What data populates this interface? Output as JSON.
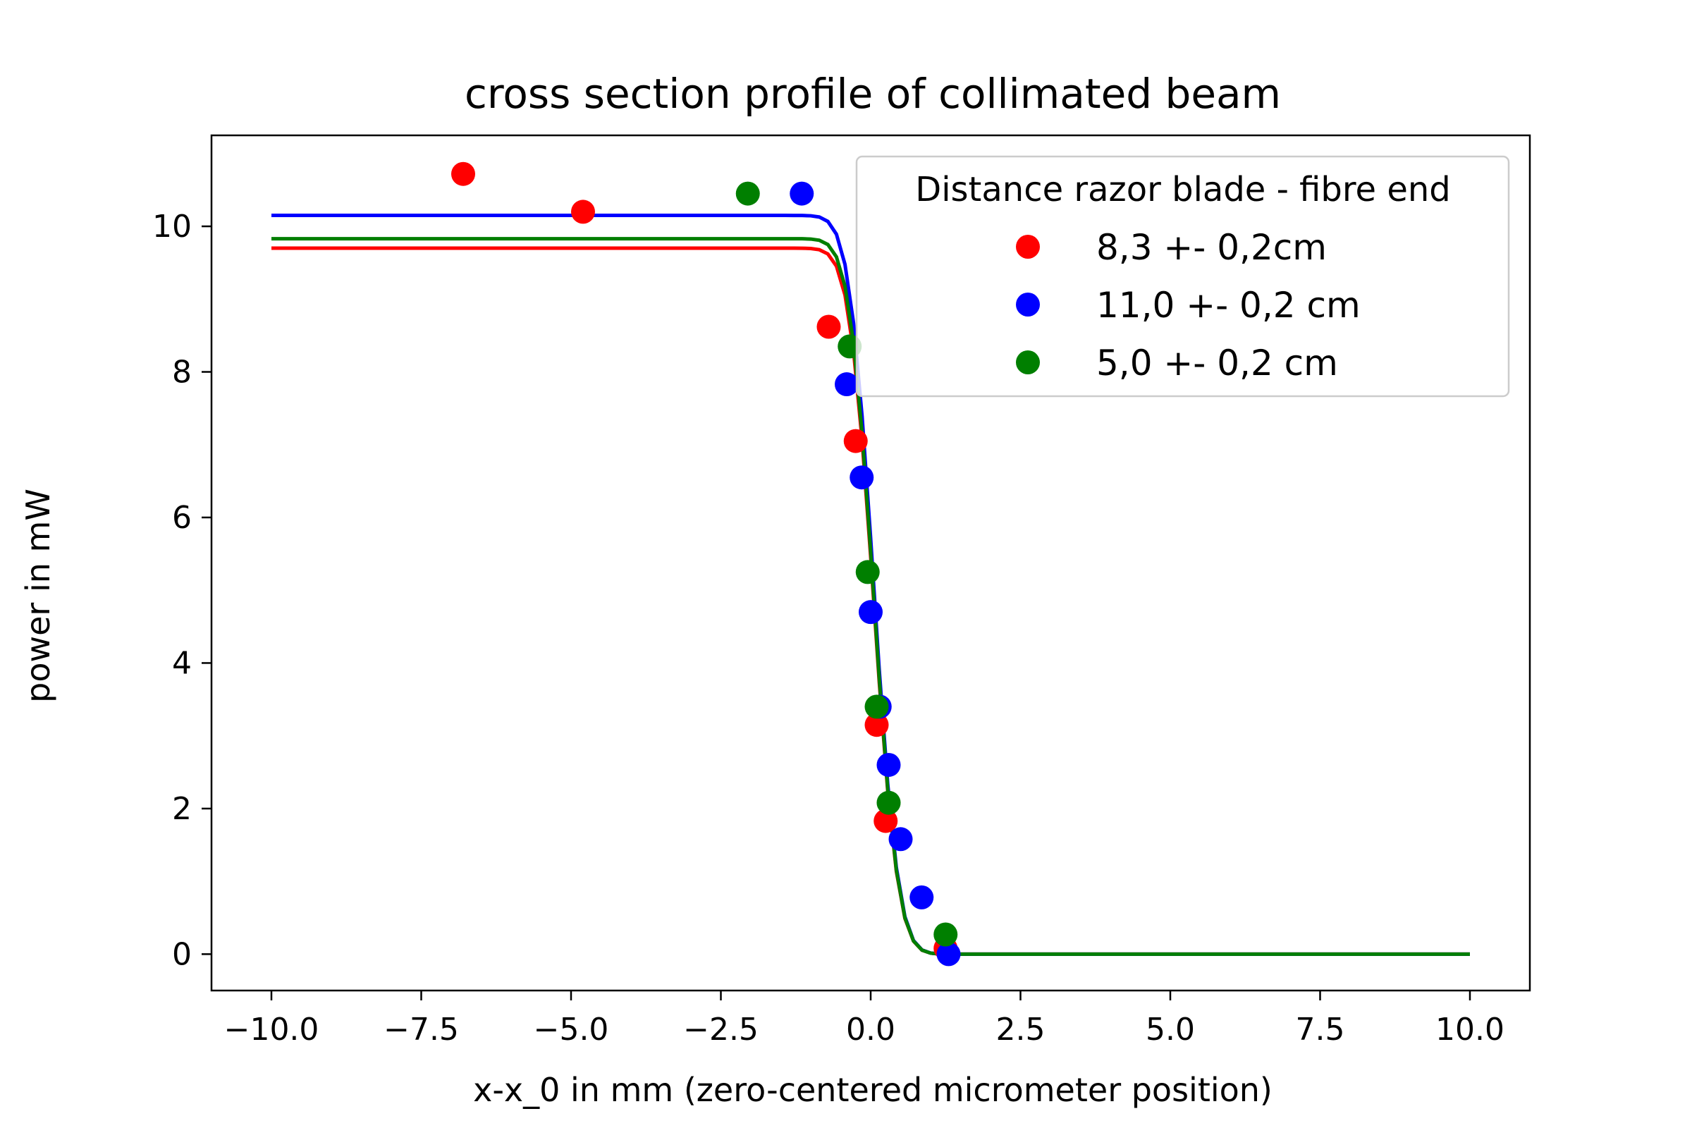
{
  "chart_data": {
    "type": "scatter",
    "title": "cross section profile of collimated beam",
    "xlabel": "x-x_0 in mm (zero-centered micrometer position)",
    "ylabel": "power in mW",
    "xlim": [
      -11.0,
      11.0
    ],
    "ylim": [
      -0.5,
      11.25
    ],
    "xticks": [
      -10.0,
      -7.5,
      -5.0,
      -2.5,
      0.0,
      2.5,
      5.0,
      7.5,
      10.0
    ],
    "xtick_labels": [
      "−10.0",
      "−7.5",
      "−5.0",
      "−2.5",
      "0.0",
      "2.5",
      "5.0",
      "7.5",
      "10.0"
    ],
    "yticks": [
      0,
      2,
      4,
      6,
      8,
      10
    ],
    "ytick_labels": [
      "0",
      "2",
      "4",
      "6",
      "8",
      "10"
    ],
    "grid": false,
    "legend": {
      "title": "Distance razor blade - fibre end",
      "placement": "top-right"
    },
    "series": [
      {
        "name": "8,3 +- 0,2cm",
        "color": "#ff0000",
        "points": [
          [
            -6.8,
            10.72
          ],
          [
            -4.8,
            10.2
          ],
          [
            -0.7,
            8.62
          ],
          [
            -0.25,
            7.05
          ],
          [
            0.1,
            3.15
          ],
          [
            0.25,
            1.83
          ],
          [
            1.25,
            0.08
          ]
        ],
        "fit": {
          "model": "erfc_step",
          "amplitude": 9.7,
          "center": 0.05,
          "width": 0.45,
          "x_range": [
            -10.0,
            10.0
          ]
        }
      },
      {
        "name": "11,0 +- 0,2 cm",
        "color": "#0000ff",
        "points": [
          [
            -1.15,
            10.45
          ],
          [
            -0.4,
            7.83
          ],
          [
            -0.15,
            6.55
          ],
          [
            0.0,
            4.7
          ],
          [
            0.15,
            3.4
          ],
          [
            0.3,
            2.6
          ],
          [
            0.5,
            1.58
          ],
          [
            0.85,
            0.78
          ],
          [
            1.3,
            0.0
          ]
        ],
        "fit": {
          "model": "erfc_step",
          "amplitude": 10.15,
          "center": 0.05,
          "width": 0.45,
          "x_range": [
            -10.0,
            10.0
          ]
        }
      },
      {
        "name": "5,0 +- 0,2 cm",
        "color": "#007f00",
        "points": [
          [
            -2.05,
            10.45
          ],
          [
            -0.35,
            8.35
          ],
          [
            -0.05,
            5.25
          ],
          [
            0.1,
            3.4
          ],
          [
            0.3,
            2.08
          ],
          [
            1.25,
            0.27
          ]
        ],
        "fit": {
          "model": "erfc_step",
          "amplitude": 9.83,
          "center": 0.05,
          "width": 0.45,
          "x_range": [
            -10.0,
            10.0
          ]
        }
      }
    ]
  }
}
